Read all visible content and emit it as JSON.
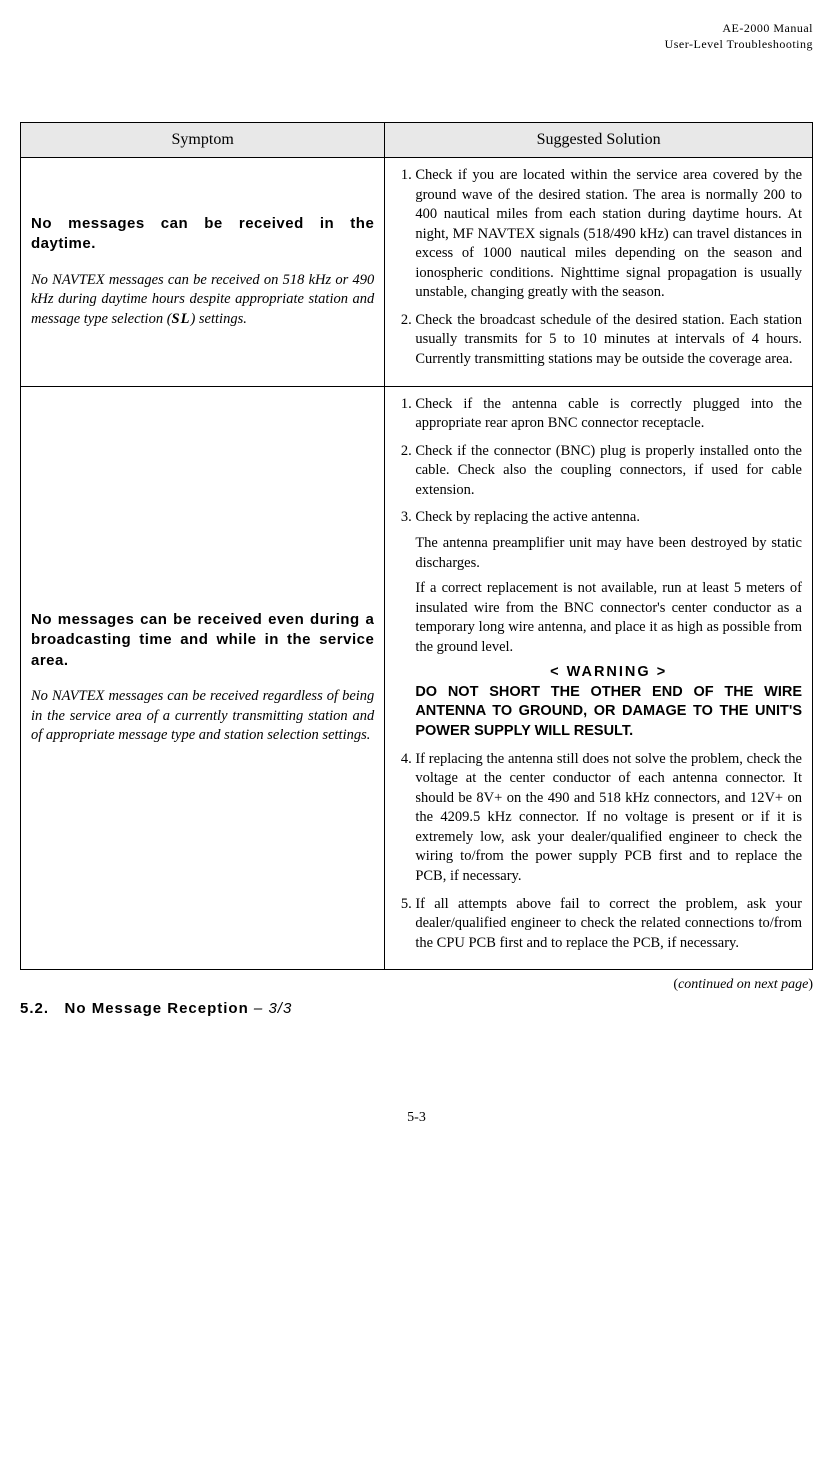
{
  "header": {
    "line1": "AE-2000 Manual",
    "line2": "User-Level Troubleshooting"
  },
  "table": {
    "columns": [
      "Symptom",
      "Suggested Solution"
    ],
    "rows": [
      {
        "symptom_title": "No messages can be received in the daytime.",
        "symptom_desc_pre": "No NAVTEX messages can be received on 518 kHz or 490 kHz during daytime hours despite appropriate station and message type selection (",
        "symptom_desc_bold": "SL",
        "symptom_desc_post": ") settings.",
        "solutions": [
          "Check if you are located within the service area covered by the ground wave of the desired station. The area is normally 200 to 400 nautical miles from each station during daytime hours. At night, MF NAVTEX signals (518/490 kHz) can travel distances in excess of 1000 nautical miles depending on the season and ionospheric conditions. Nighttime signal propagation is usually unstable, changing greatly with the season.",
          "Check the broadcast schedule of the desired station. Each station usually transmits for 5 to 10 minutes at intervals of 4 hours. Currently transmitting stations may be outside the coverage area."
        ]
      },
      {
        "symptom_title": "No messages can be received even during a broadcasting time and while in the service area.",
        "symptom_desc_full": "No NAVTEX messages can be received regardless of being in the service area of a currently transmitting station and of appropriate message type and station selection settings.",
        "sol_items": {
          "i1": "Check if the antenna cable is correctly plugged into the appropriate rear apron BNC connector receptacle.",
          "i2": "Check if the connector (BNC) plug is properly installed onto the cable. Check also the coupling connectors, if used for cable extension.",
          "i3": "Check by replacing the active antenna.",
          "i3_p1": "The antenna preamplifier unit may have been destroyed by static discharges.",
          "i3_p2": "If a correct replacement is not available, run at least 5 meters of insulated wire from the BNC connector's center conductor as a temporary long wire antenna, and place it as high as possible from the ground level.",
          "warn_label": "< WARNING >",
          "warn_text": "DO NOT SHORT THE OTHER END OF THE WIRE ANTENNA TO GROUND, OR DAMAGE TO THE UNIT'S POWER SUPPLY WILL RESULT.",
          "i4": "If replacing the antenna still does not solve the problem, check the voltage at the center conductor of each antenna connector. It should be 8V+ on the 490 and 518 kHz connectors, and 12V+ on the 4209.5 kHz connector.  If no voltage is present or if it is extremely low, ask your dealer/qualified engineer to check the wiring to/from the power supply PCB first and to replace the PCB, if necessary.",
          "i5": "If all attempts above fail to correct the problem, ask your dealer/qualified engineer to check the related connections to/from the CPU PCB first and to replace the PCB, if necessary."
        }
      }
    ]
  },
  "continued": "continued on next page",
  "section": {
    "num": "5.2.",
    "title": "No Message Reception",
    "sub": " – 3/3"
  },
  "page_num": "5-3"
}
